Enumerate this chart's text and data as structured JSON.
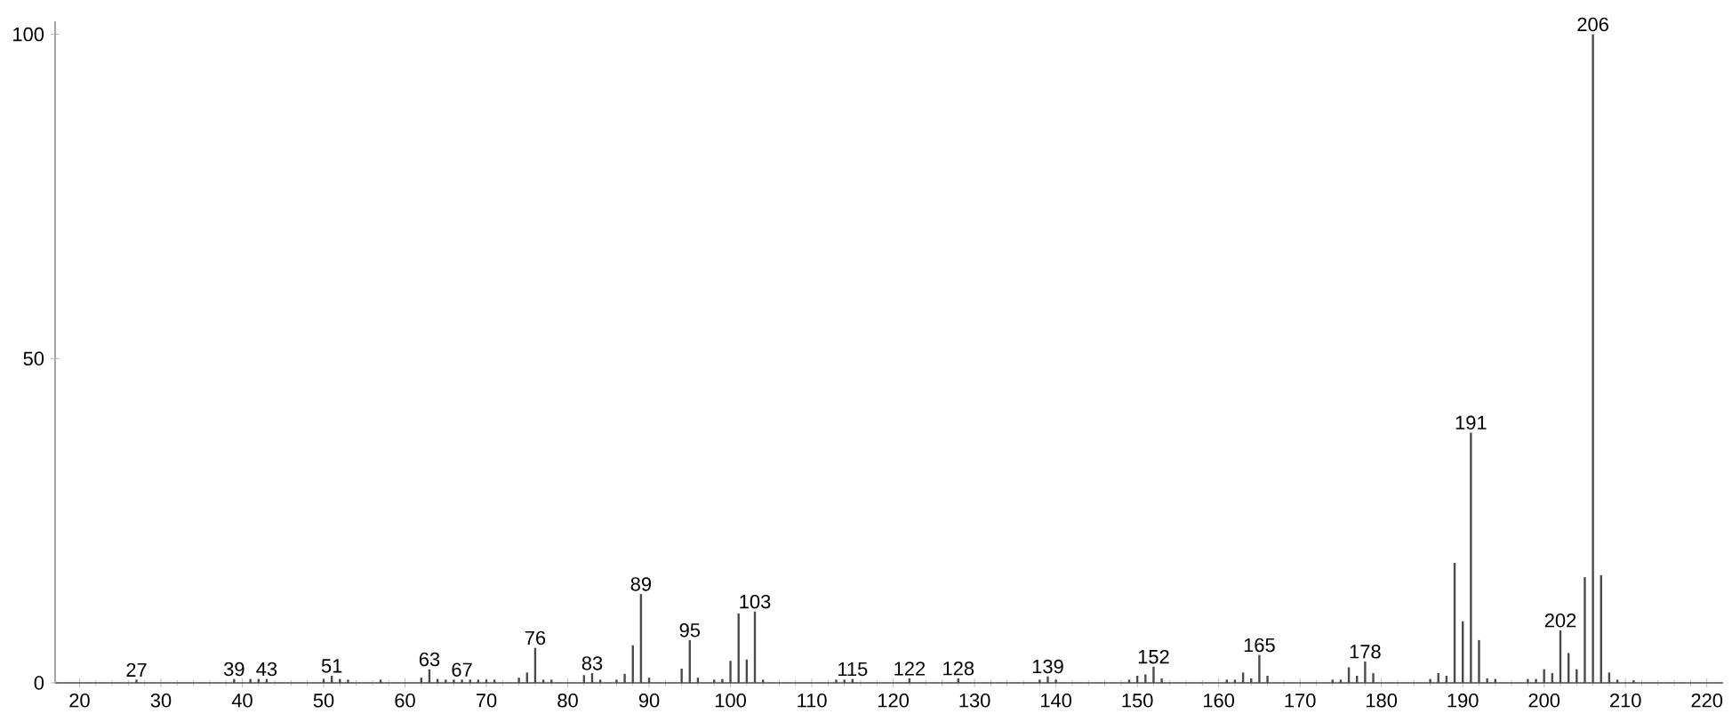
{
  "chart_data": {
    "type": "bar",
    "x": [
      27,
      39,
      41,
      42,
      43,
      50,
      51,
      52,
      53,
      57,
      62,
      63,
      64,
      65,
      66,
      67,
      68,
      69,
      70,
      71,
      74,
      75,
      76,
      77,
      78,
      82,
      83,
      84,
      86,
      87,
      88,
      89,
      90,
      94,
      95,
      96,
      98,
      99,
      100,
      101,
      102,
      103,
      104,
      113,
      114,
      115,
      122,
      128,
      138,
      139,
      140,
      149,
      150,
      151,
      152,
      153,
      161,
      162,
      163,
      164,
      165,
      166,
      174,
      175,
      176,
      177,
      178,
      179,
      186,
      187,
      188,
      189,
      190,
      191,
      192,
      193,
      194,
      198,
      199,
      200,
      201,
      202,
      203,
      204,
      205,
      206,
      207,
      208,
      209,
      211
    ],
    "values": [
      0.5,
      0.6,
      0.6,
      0.6,
      0.6,
      0.6,
      1.1,
      0.6,
      0.5,
      0.5,
      0.8,
      2.1,
      0.6,
      0.5,
      0.5,
      0.5,
      0.5,
      0.5,
      0.5,
      0.5,
      0.8,
      1.6,
      5.4,
      0.5,
      0.5,
      1.2,
      1.5,
      0.5,
      0.5,
      1.4,
      5.8,
      13.7,
      0.8,
      2.2,
      6.6,
      0.8,
      0.5,
      0.6,
      3.4,
      10.7,
      3.6,
      11.0,
      0.5,
      0.5,
      0.5,
      0.6,
      0.7,
      0.7,
      0.5,
      1.0,
      0.5,
      0.5,
      1.1,
      1.3,
      2.5,
      0.7,
      0.5,
      0.5,
      1.6,
      0.7,
      4.3,
      1.1,
      0.5,
      0.5,
      2.4,
      1.1,
      3.3,
      1.5,
      0.6,
      1.5,
      1.1,
      18.5,
      9.5,
      38.6,
      6.6,
      0.7,
      0.6,
      0.6,
      0.6,
      2.1,
      1.5,
      8.1,
      4.6,
      2.1,
      16.3,
      100,
      16.6,
      1.6,
      0.5,
      0.4
    ],
    "color": "#4a4a4a",
    "xlim": [
      17,
      222
    ],
    "ylim": [
      0,
      102
    ],
    "xticks": [
      20,
      30,
      40,
      50,
      60,
      70,
      80,
      90,
      100,
      110,
      120,
      130,
      140,
      150,
      160,
      170,
      180,
      190,
      200,
      210,
      220
    ],
    "yticks": [
      0,
      50,
      100
    ],
    "grid": false,
    "annotations": [
      {
        "text": "27",
        "x": 27,
        "y": 0.5
      },
      {
        "text": "39",
        "x": 39,
        "y": 0.6
      },
      {
        "text": "43",
        "x": 43,
        "y": 0.6
      },
      {
        "text": "51",
        "x": 51,
        "y": 1.1
      },
      {
        "text": "63",
        "x": 63,
        "y": 2.1
      },
      {
        "text": "67",
        "x": 67,
        "y": 0.5
      },
      {
        "text": "76",
        "x": 76,
        "y": 5.4
      },
      {
        "text": "83",
        "x": 83,
        "y": 1.5
      },
      {
        "text": "89",
        "x": 89,
        "y": 13.7
      },
      {
        "text": "95",
        "x": 95,
        "y": 6.6
      },
      {
        "text": "103",
        "x": 103,
        "y": 11.0
      },
      {
        "text": "115",
        "x": 115,
        "y": 0.6
      },
      {
        "text": "122",
        "x": 122,
        "y": 0.7
      },
      {
        "text": "128",
        "x": 128,
        "y": 0.7
      },
      {
        "text": "139",
        "x": 139,
        "y": 1.0
      },
      {
        "text": "152",
        "x": 152,
        "y": 2.5
      },
      {
        "text": "165",
        "x": 165,
        "y": 4.3
      },
      {
        "text": "178",
        "x": 178,
        "y": 3.3
      },
      {
        "text": "191",
        "x": 191,
        "y": 38.6
      },
      {
        "text": "202",
        "x": 202,
        "y": 8.1
      },
      {
        "text": "206",
        "x": 206,
        "y": 100
      }
    ]
  }
}
